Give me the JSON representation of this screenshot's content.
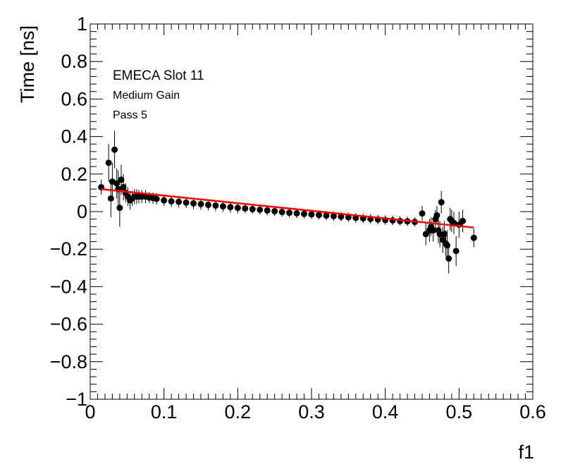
{
  "chart_data": {
    "type": "scatter",
    "title": "",
    "xlabel": "f1",
    "ylabel": "Time [ns]",
    "xlim": [
      0,
      0.6
    ],
    "ylim": [
      -1,
      1
    ],
    "x_ticks": [
      "0",
      "0.1",
      "0.2",
      "0.3",
      "0.4",
      "0.5",
      "0.6"
    ],
    "y_ticks": [
      "−1",
      "−0.8",
      "−0.6",
      "−0.4",
      "−0.2",
      "0",
      "0.2",
      "0.4",
      "0.6",
      "0.8",
      "1"
    ],
    "grid": false,
    "annotations": [
      "EMECA Slot 11",
      "Medium Gain",
      "Pass 5"
    ],
    "colors": {
      "markers": "#000000",
      "fit": "#ff0000",
      "frame": "#000000"
    },
    "fit_line": {
      "x": [
        0.015,
        0.52
      ],
      "y": [
        0.12,
        -0.085
      ]
    },
    "series": [
      {
        "x": [
          0.015,
          0.025,
          0.028,
          0.03,
          0.033,
          0.036,
          0.038,
          0.04,
          0.042,
          0.045,
          0.048,
          0.051,
          0.054,
          0.057,
          0.06,
          0.063,
          0.066,
          0.07,
          0.075,
          0.08,
          0.085,
          0.09,
          0.1,
          0.11,
          0.12,
          0.13,
          0.14,
          0.15,
          0.16,
          0.17,
          0.18,
          0.19,
          0.2,
          0.21,
          0.22,
          0.23,
          0.24,
          0.25,
          0.26,
          0.27,
          0.28,
          0.29,
          0.3,
          0.31,
          0.32,
          0.33,
          0.34,
          0.35,
          0.36,
          0.37,
          0.38,
          0.39,
          0.4,
          0.41,
          0.42,
          0.43,
          0.44,
          0.45,
          0.455,
          0.46,
          0.462,
          0.465,
          0.468,
          0.47,
          0.472,
          0.474,
          0.476,
          0.478,
          0.48,
          0.482,
          0.484,
          0.486,
          0.488,
          0.49,
          0.493,
          0.496,
          0.5,
          0.505,
          0.52
        ],
        "y": [
          0.13,
          0.26,
          0.07,
          0.16,
          0.33,
          0.15,
          0.12,
          0.02,
          0.17,
          0.13,
          0.1,
          0.08,
          0.06,
          0.07,
          0.08,
          0.08,
          0.08,
          0.08,
          0.08,
          0.075,
          0.072,
          0.068,
          0.06,
          0.055,
          0.052,
          0.048,
          0.044,
          0.04,
          0.036,
          0.032,
          0.028,
          0.024,
          0.02,
          0.017,
          0.013,
          0.01,
          0.006,
          0.002,
          -0.002,
          -0.006,
          -0.009,
          -0.012,
          -0.015,
          -0.018,
          -0.021,
          -0.024,
          -0.027,
          -0.03,
          -0.033,
          -0.036,
          -0.039,
          -0.042,
          -0.045,
          -0.047,
          -0.05,
          -0.052,
          -0.055,
          -0.01,
          -0.12,
          -0.1,
          -0.08,
          -0.1,
          -0.04,
          -0.02,
          -0.1,
          -0.12,
          0.05,
          -0.15,
          -0.12,
          -0.17,
          -0.18,
          -0.25,
          -0.04,
          -0.05,
          -0.06,
          -0.21,
          -0.07,
          -0.05,
          -0.14
        ],
        "yerr": [
          0.04,
          0.1,
          0.1,
          0.1,
          0.1,
          0.08,
          0.1,
          0.1,
          0.08,
          0.07,
          0.05,
          0.05,
          0.05,
          0.04,
          0.04,
          0.04,
          0.035,
          0.035,
          0.035,
          0.03,
          0.03,
          0.03,
          0.03,
          0.03,
          0.03,
          0.03,
          0.03,
          0.03,
          0.03,
          0.03,
          0.03,
          0.03,
          0.03,
          0.025,
          0.025,
          0.025,
          0.025,
          0.025,
          0.025,
          0.025,
          0.025,
          0.025,
          0.025,
          0.025,
          0.025,
          0.025,
          0.025,
          0.025,
          0.025,
          0.025,
          0.025,
          0.025,
          0.025,
          0.025,
          0.025,
          0.025,
          0.025,
          0.04,
          0.06,
          0.06,
          0.05,
          0.06,
          0.05,
          0.05,
          0.07,
          0.07,
          0.06,
          0.07,
          0.07,
          0.07,
          0.08,
          0.08,
          0.06,
          0.06,
          0.06,
          0.08,
          0.07,
          0.06,
          0.05
        ]
      }
    ]
  }
}
